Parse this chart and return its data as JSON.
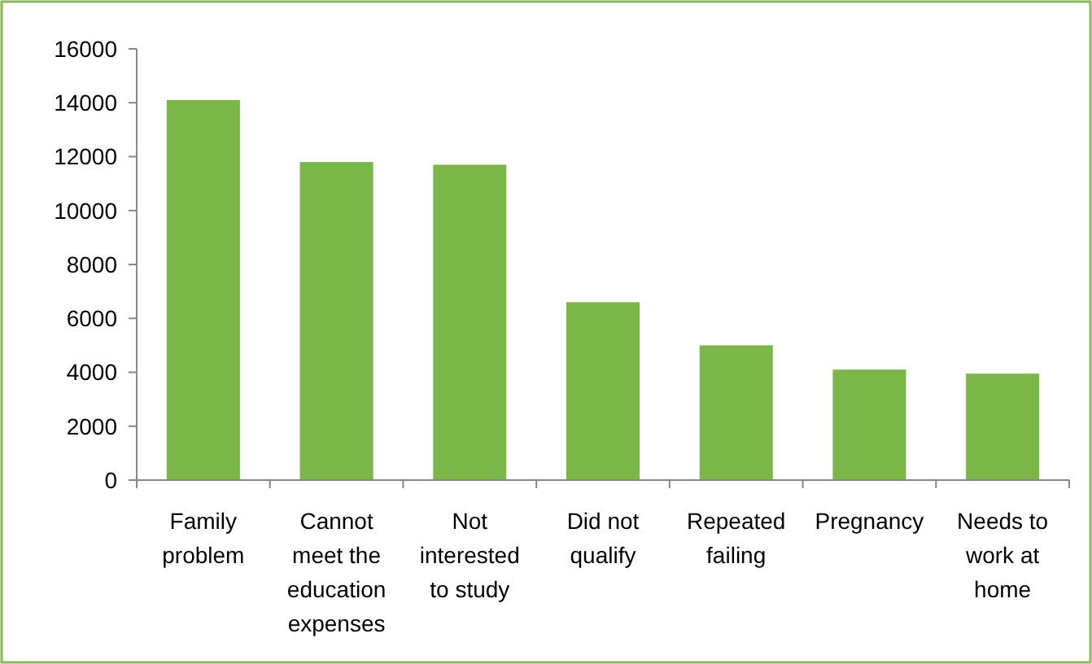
{
  "chart_data": {
    "type": "bar",
    "categories": [
      "Family problem",
      "Cannot meet the education expenses",
      "Not interested to study",
      "Did not qualify",
      "Repeated failing",
      "Pregnancy",
      "Needs to work at home"
    ],
    "values": [
      14100,
      11800,
      11700,
      6600,
      5000,
      4100,
      3950
    ],
    "color": "#7ab648",
    "ylim": [
      0,
      16000
    ],
    "yticks": [
      0,
      2000,
      4000,
      6000,
      8000,
      10000,
      12000,
      14000,
      16000
    ],
    "grid": false
  }
}
